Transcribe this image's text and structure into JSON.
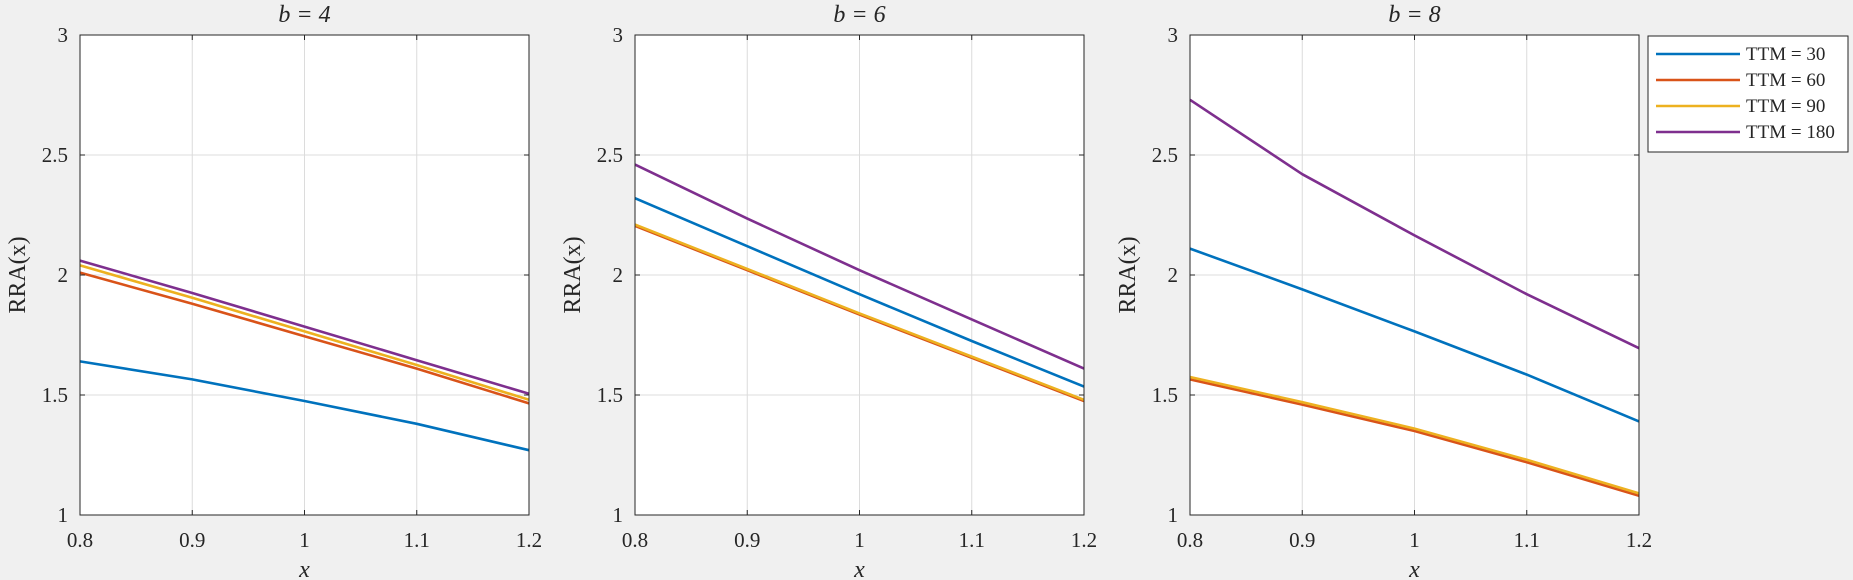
{
  "chart_data": [
    {
      "type": "line",
      "title": "b = 4",
      "xlabel": "x",
      "ylabel": "RRA(x)",
      "xlim": [
        0.8,
        1.2
      ],
      "ylim": [
        1,
        3
      ],
      "xticks": [
        0.8,
        0.9,
        1,
        1.1,
        1.2
      ],
      "xtick_labels": [
        "0.8",
        "0.9",
        "1",
        "1.1",
        "1.2"
      ],
      "yticks": [
        1,
        1.5,
        2,
        2.5,
        3
      ],
      "ytick_labels": [
        "1",
        "1.5",
        "2",
        "2.5",
        "3"
      ],
      "grid": true,
      "x": [
        0.8,
        0.9,
        1.0,
        1.1,
        1.2
      ],
      "series": [
        {
          "name": "TTM = 30",
          "color": "#0072BD",
          "values": [
            1.64,
            1.565,
            1.475,
            1.38,
            1.27
          ]
        },
        {
          "name": "TTM = 60",
          "color": "#D95319",
          "values": [
            2.01,
            1.88,
            1.745,
            1.61,
            1.465
          ]
        },
        {
          "name": "TTM = 90",
          "color": "#EDB120",
          "values": [
            2.04,
            1.905,
            1.765,
            1.625,
            1.48
          ]
        },
        {
          "name": "TTM = 180",
          "color": "#7E2F8E",
          "values": [
            2.06,
            1.925,
            1.785,
            1.645,
            1.505
          ]
        }
      ]
    },
    {
      "type": "line",
      "title": "b = 6",
      "xlabel": "x",
      "ylabel": "RRA(x)",
      "xlim": [
        0.8,
        1.2
      ],
      "ylim": [
        1,
        3
      ],
      "xticks": [
        0.8,
        0.9,
        1,
        1.1,
        1.2
      ],
      "xtick_labels": [
        "0.8",
        "0.9",
        "1",
        "1.1",
        "1.2"
      ],
      "yticks": [
        1,
        1.5,
        2,
        2.5,
        3
      ],
      "ytick_labels": [
        "1",
        "1.5",
        "2",
        "2.5",
        "3"
      ],
      "grid": true,
      "x": [
        0.8,
        0.9,
        1.0,
        1.1,
        1.2
      ],
      "series": [
        {
          "name": "TTM = 30",
          "color": "#0072BD",
          "values": [
            2.32,
            2.12,
            1.92,
            1.725,
            1.535
          ]
        },
        {
          "name": "TTM = 60",
          "color": "#D95319",
          "values": [
            2.205,
            2.02,
            1.835,
            1.655,
            1.475
          ]
        },
        {
          "name": "TTM = 90",
          "color": "#EDB120",
          "values": [
            2.21,
            2.025,
            1.84,
            1.66,
            1.48
          ]
        },
        {
          "name": "TTM = 180",
          "color": "#7E2F8E",
          "values": [
            2.46,
            2.235,
            2.02,
            1.815,
            1.61
          ]
        }
      ]
    },
    {
      "type": "line",
      "title": "b = 8",
      "xlabel": "x",
      "ylabel": "RRA(x)",
      "xlim": [
        0.8,
        1.2
      ],
      "ylim": [
        1,
        3
      ],
      "xticks": [
        0.8,
        0.9,
        1,
        1.1,
        1.2
      ],
      "xtick_labels": [
        "0.8",
        "0.9",
        "1",
        "1.1",
        "1.2"
      ],
      "yticks": [
        1,
        1.5,
        2,
        2.5,
        3
      ],
      "ytick_labels": [
        "1",
        "1.5",
        "2",
        "2.5",
        "3"
      ],
      "grid": true,
      "x": [
        0.8,
        0.9,
        1.0,
        1.1,
        1.2
      ],
      "series": [
        {
          "name": "TTM = 30",
          "color": "#0072BD",
          "values": [
            2.11,
            1.94,
            1.765,
            1.585,
            1.39
          ]
        },
        {
          "name": "TTM = 60",
          "color": "#D95319",
          "values": [
            1.565,
            1.46,
            1.35,
            1.22,
            1.08
          ]
        },
        {
          "name": "TTM = 90",
          "color": "#EDB120",
          "values": [
            1.575,
            1.47,
            1.36,
            1.23,
            1.09
          ]
        },
        {
          "name": "TTM = 180",
          "color": "#7E2F8E",
          "values": [
            2.73,
            2.42,
            2.165,
            1.92,
            1.695
          ]
        }
      ]
    }
  ],
  "legend": {
    "placement": "outside-top-right",
    "entries": [
      {
        "label": "TTM = 30",
        "color": "#0072BD"
      },
      {
        "label": "TTM = 60",
        "color": "#D95319"
      },
      {
        "label": "TTM = 90",
        "color": "#EDB120"
      },
      {
        "label": "TTM = 180",
        "color": "#7E2F8E"
      }
    ]
  }
}
